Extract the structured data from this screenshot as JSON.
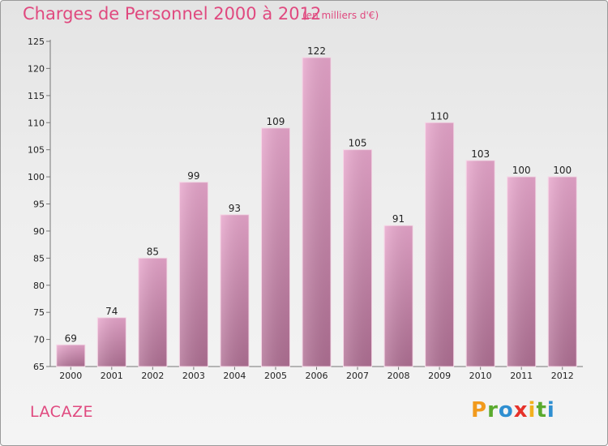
{
  "header": {
    "title": "Charges de Personnel 2000 à 2012",
    "subtitle": "(en milliers d'€)"
  },
  "footer": {
    "commune": "LACAZE",
    "logo": [
      "P",
      "r",
      "o",
      "x",
      "i",
      "t",
      "i"
    ]
  },
  "colors": {
    "accent": "#e0497f",
    "bar_top": "#e8a6cc",
    "bar_bottom": "#b07094",
    "logo": [
      "#f19a1d",
      "#5aaa2e",
      "#2f8fd1",
      "#e6322a",
      "#f2b01e",
      "#5aaa2e",
      "#2f8fd1"
    ]
  },
  "chart_data": {
    "type": "bar",
    "title": "Charges de Personnel 2000 à 2012",
    "subtitle": "(en milliers d'€)",
    "categories": [
      "2000",
      "2001",
      "2002",
      "2003",
      "2004",
      "2005",
      "2006",
      "2007",
      "2008",
      "2009",
      "2010",
      "2011",
      "2012"
    ],
    "values": [
      69,
      74,
      85,
      99,
      93,
      109,
      122,
      105,
      91,
      110,
      103,
      100,
      100
    ],
    "ylim": [
      65,
      125
    ],
    "yticks": [
      65,
      70,
      75,
      80,
      85,
      90,
      95,
      100,
      105,
      110,
      115,
      120,
      125
    ],
    "grid": false,
    "legend": "none"
  }
}
